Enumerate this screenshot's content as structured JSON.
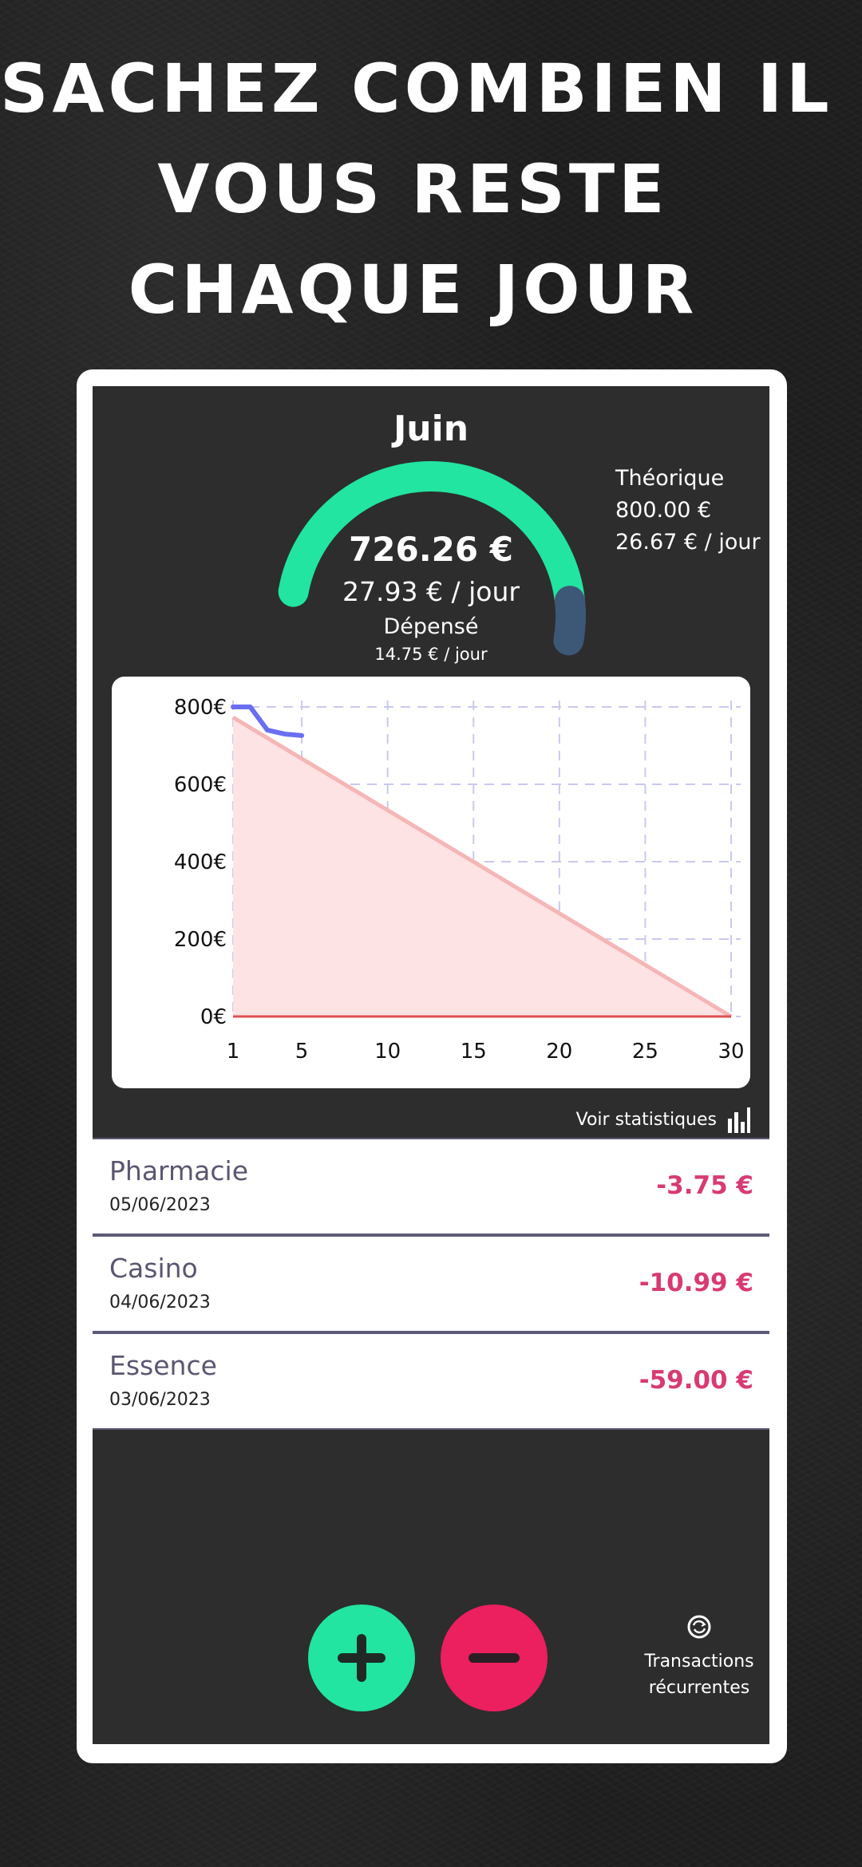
{
  "headline": [
    "SACHEZ COMBIEN IL",
    "VOUS RESTE",
    "CHAQUE JOUR"
  ],
  "screen": {
    "month": "Juin",
    "gauge": {
      "amount": "726.26 €",
      "per_day": "27.93 € / jour",
      "spent_label": "Dépensé",
      "spent_per_day": "14.75 € / jour",
      "remaining_fraction": 0.91,
      "color_remaining": "#21e5a0",
      "color_spent": "#3d5877"
    },
    "theoretical": {
      "label": "Théorique",
      "amount": "800.00 €",
      "per_day": "26.67 € / jour"
    },
    "stats_link": "Voir statistiques",
    "transactions": [
      {
        "name": "Pharmacie",
        "date": "05/06/2023",
        "amount": "-3.75 €"
      },
      {
        "name": "Casino",
        "date": "04/06/2023",
        "amount": "-10.99 €"
      },
      {
        "name": "Essence",
        "date": "03/06/2023",
        "amount": "-59.00 €"
      }
    ],
    "buttons": {
      "add_icon": "plus-icon",
      "subtract_icon": "minus-icon",
      "recurring_icon": "recurring-icon",
      "recurring_label_1": "Transactions",
      "recurring_label_2": "récurrentes"
    }
  },
  "chart_data": {
    "type": "line",
    "x_ticks": [
      1,
      5,
      10,
      15,
      20,
      25,
      30
    ],
    "y_ticks": [
      "0€",
      "200€",
      "400€",
      "600€",
      "800€"
    ],
    "xlim": [
      1,
      30
    ],
    "ylim": [
      0,
      800
    ],
    "grid": true,
    "series": [
      {
        "x": [
          1,
          2,
          3,
          4,
          5
        ],
        "y": [
          800,
          800,
          740,
          730,
          726
        ],
        "color": "#6a6ef0"
      },
      {
        "x": [
          1,
          30
        ],
        "y": [
          773,
          0
        ],
        "color": "#f6b6b6"
      },
      {
        "x": [
          1,
          30
        ],
        "y": [
          0,
          0
        ],
        "color": "#e05050"
      }
    ]
  }
}
